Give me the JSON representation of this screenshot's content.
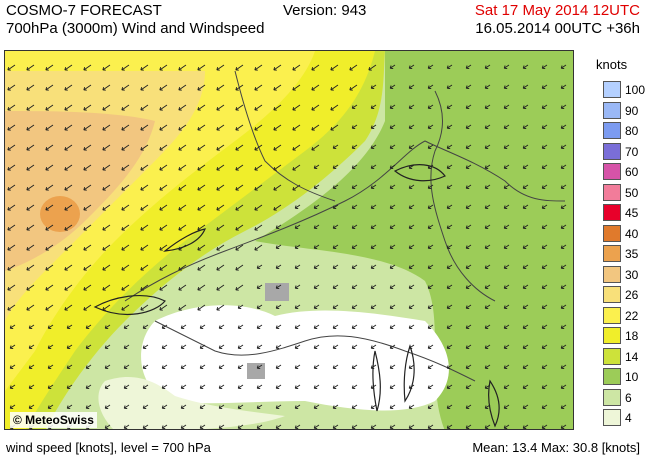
{
  "header": {
    "title_line1": "COSMO-7 FORECAST",
    "title_line2": "700hPa (3000m) Wind and Windspeed",
    "version": "Version: 943",
    "valid_time": "Sat 17 May 2014 12UTC",
    "run_time": "16.05.2014 00UTC +36h"
  },
  "map": {
    "copyright": "© MeteoSwiss",
    "dominant_wind_direction": "north-easterly (arrows point south-west)"
  },
  "legend": {
    "unit": "knots",
    "levels": [
      {
        "label": "100",
        "color": "#b4d0ff"
      },
      {
        "label": "90",
        "color": "#9ab8f6"
      },
      {
        "label": "80",
        "color": "#7c9bf0"
      },
      {
        "label": "70",
        "color": "#7a6ed8"
      },
      {
        "label": "60",
        "color": "#d653a8"
      },
      {
        "label": "50",
        "color": "#f27c9a"
      },
      {
        "label": "45",
        "color": "#e8002a"
      },
      {
        "label": "40",
        "color": "#e07a2c"
      },
      {
        "label": "35",
        "color": "#eca24e"
      },
      {
        "label": "30",
        "color": "#f2c680"
      },
      {
        "label": "26",
        "color": "#f8e07a"
      },
      {
        "label": "22",
        "color": "#fbf04e"
      },
      {
        "label": "18",
        "color": "#f0ee2a"
      },
      {
        "label": "14",
        "color": "#cde23a"
      },
      {
        "label": "10",
        "color": "#9ccc58"
      },
      {
        "label": "6",
        "color": "#cde6a4"
      },
      {
        "label": "4",
        "color": "#eef6d8"
      }
    ]
  },
  "footer": {
    "left": "wind speed [knots], level = 700 hPa",
    "right": "Mean:   13.4 Max:   30.8 [knots]"
  }
}
